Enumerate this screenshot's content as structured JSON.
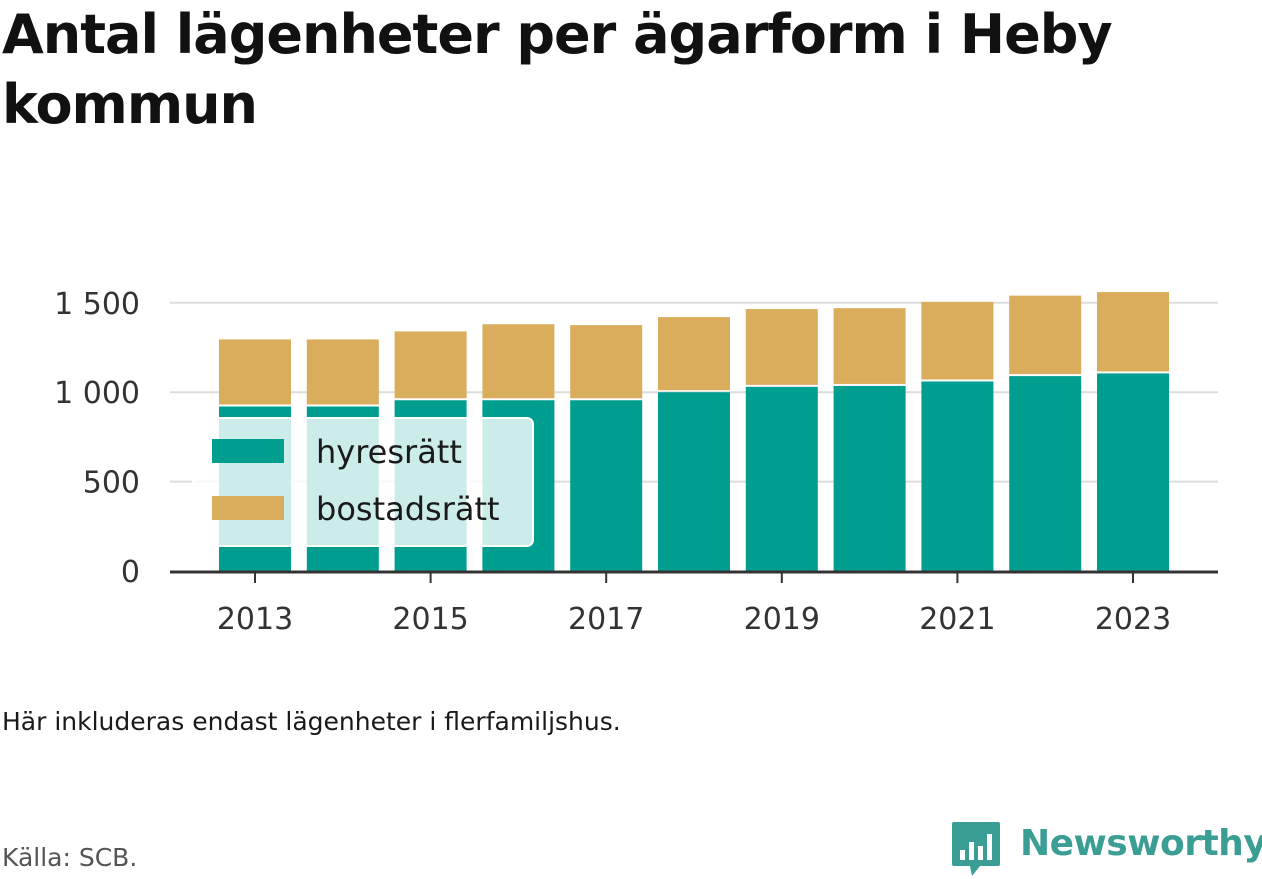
{
  "title": "Antal lägenheter per ägarform i Heby kommun",
  "note": "Här inkluderas endast lägenheter i flerfamiljshus.",
  "source": "Källa: SCB.",
  "brand": {
    "name": "Newsworthy",
    "icon": "newsworthy-logo-icon",
    "color": "#3a9e95"
  },
  "chart_data": {
    "type": "bar",
    "stacked": true,
    "x": [
      2013,
      2014,
      2015,
      2016,
      2017,
      2018,
      2019,
      2020,
      2021,
      2022,
      2023
    ],
    "x_tick_labels": [
      "2013",
      "2015",
      "2017",
      "2019",
      "2021",
      "2023"
    ],
    "y_ticks": [
      0,
      500,
      1000,
      1500
    ],
    "y_tick_labels": [
      "0",
      "500",
      "1 000",
      "1 500"
    ],
    "ylim": [
      0,
      1650
    ],
    "grid": true,
    "legend_position": "left-middle",
    "series": [
      {
        "name": "hyresrätt",
        "color": "#009e8f",
        "values": [
          920,
          920,
          955,
          955,
          955,
          1000,
          1030,
          1035,
          1060,
          1090,
          1105
        ]
      },
      {
        "name": "bostadsrätt",
        "color": "#d9ad5b",
        "values": [
          375,
          375,
          385,
          425,
          420,
          420,
          435,
          435,
          445,
          450,
          455
        ]
      }
    ]
  }
}
